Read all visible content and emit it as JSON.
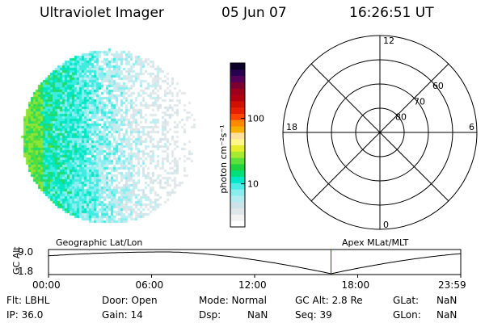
{
  "header": {
    "instrument": "Ultraviolet Imager",
    "date": "05 Jun 07",
    "time": "16:26:51 UT"
  },
  "colorbar": {
    "label": "photon cm⁻²s⁻¹",
    "ticks": [
      {
        "text": "100",
        "value": 100
      },
      {
        "text": "10",
        "value": 10
      }
    ],
    "log_range": [
      2.2,
      700
    ],
    "colors": [
      "#ffffff",
      "#f2f2f2",
      "#dfe6ea",
      "#cde3ea",
      "#b3ecef",
      "#8aeef0",
      "#4deee5",
      "#00e8c8",
      "#00e07a",
      "#20d440",
      "#5ce03c",
      "#a6ea32",
      "#e6ee2c",
      "#fff78a",
      "#ffe0a0",
      "#f6b000",
      "#ff8a00",
      "#ff4600",
      "#e62000",
      "#d01000",
      "#b00012",
      "#9e001c",
      "#7a0034",
      "#550058",
      "#2a0050",
      "#0c0028"
    ]
  },
  "polar": {
    "rings": [
      {
        "text": "60",
        "value": 60
      },
      {
        "text": "70",
        "value": 70
      },
      {
        "text": "80",
        "value": 80
      }
    ],
    "mlt": {
      "top": "12",
      "bottom": "0",
      "left": "18",
      "right": "6"
    }
  },
  "timeline": {
    "left_label": "Geographic Lat/Lon",
    "right_label": "Apex  MLat/MLT",
    "axis_title": "GC Alt",
    "y_ticks": [
      "9.0",
      "1.8"
    ],
    "x_ticks": [
      "00:00",
      "06:00",
      "12:00",
      "18:00",
      "23:59"
    ],
    "current_marker_hours": 16.448,
    "marker_color": "#cc0000"
  },
  "info": {
    "flt": "Flt: LBHL",
    "ip": "IP: 36.0",
    "door": "Door: Open",
    "gain": "Gain: 14",
    "mode": "Mode: Normal",
    "dsp": "Dsp:",
    "dsp_value": "NaN",
    "gc_alt": "GC Alt: 2.8 Re",
    "seq": "Seq: 39",
    "glat": "GLat:",
    "glat_value": "NaN",
    "glon": "GLon:",
    "glon_value": "NaN"
  }
}
